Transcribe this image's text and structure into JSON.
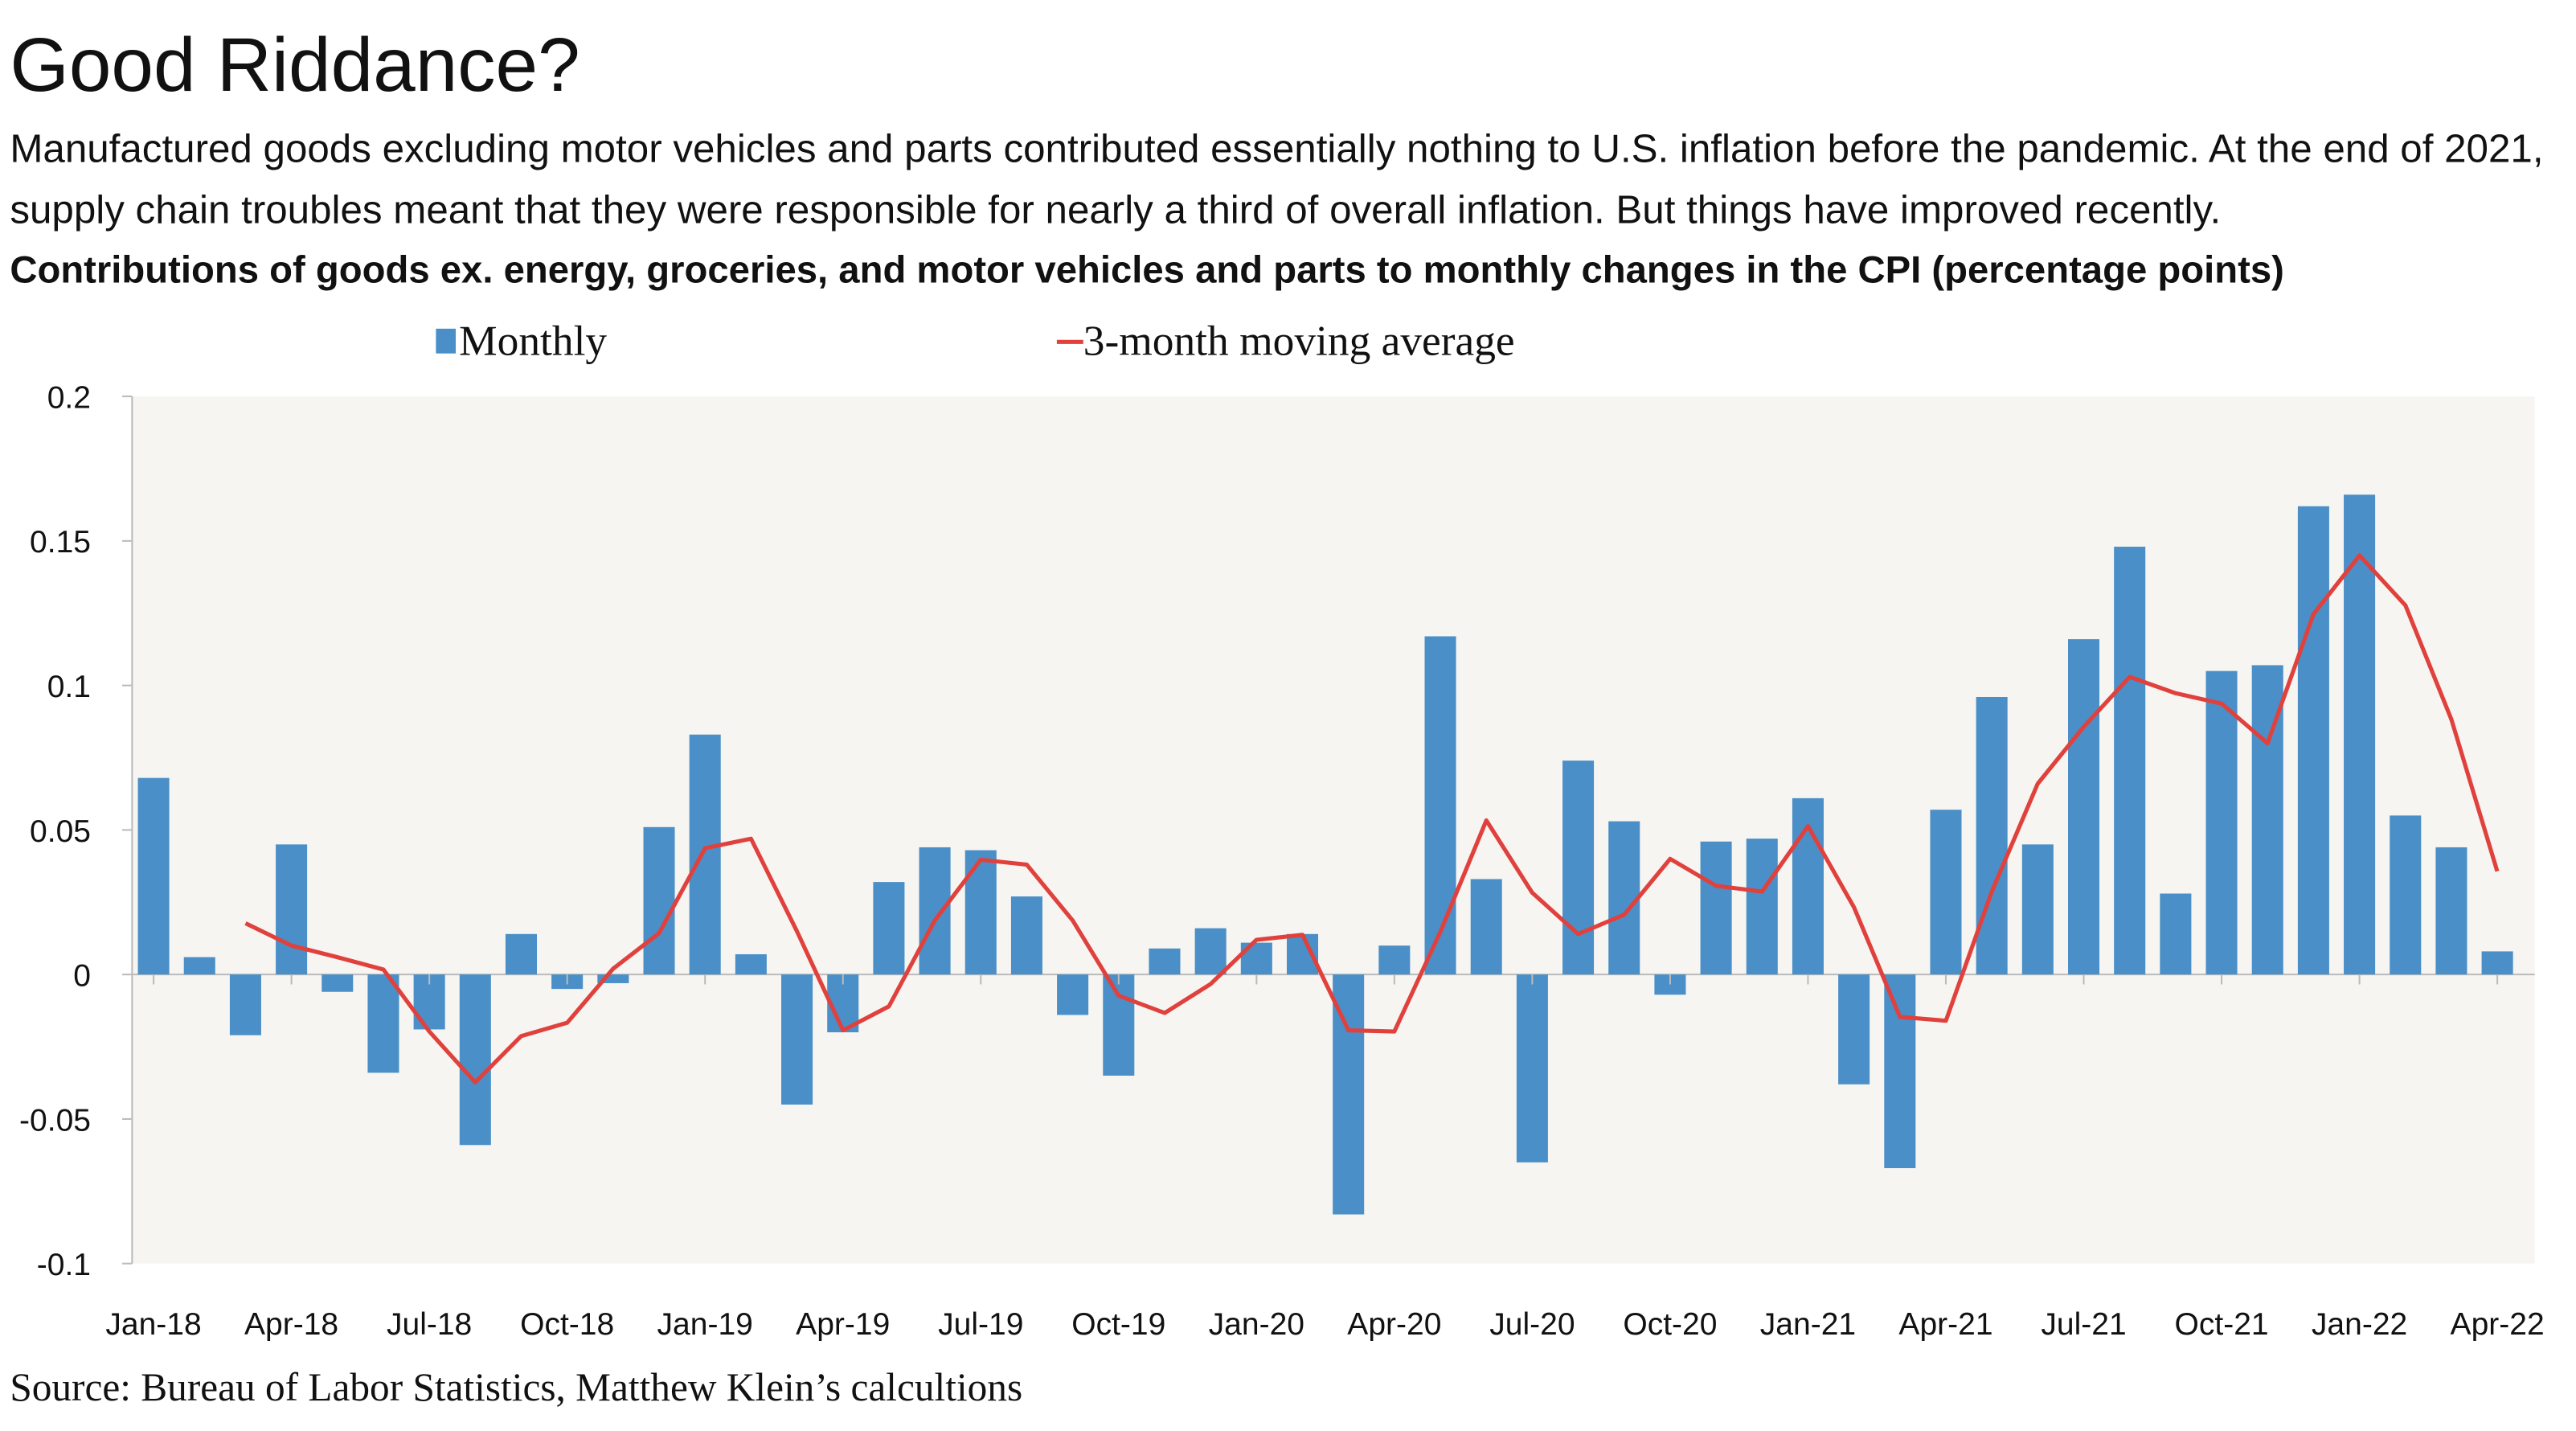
{
  "title": "Good Riddance?",
  "subtitle": "Manufactured goods excluding motor vehicles and parts contributed essentially nothing to U.S. inflation before the pandemic. At the end of 2021, supply chain troubles meant that they were responsible for nearly a third of overall inflation. But things have improved recently.",
  "source": "Source: Bureau of Labor Statistics, Matthew Klein’s calcultions",
  "chart_data": {
    "type": "bar+line",
    "title": "Contributions of goods ex. energy, groceries, and motor vehicles and parts to monthly changes in the CPI (percentage points)",
    "xlabel": "",
    "ylabel": "",
    "ylim": [
      -0.1,
      0.2
    ],
    "yticks": [
      "0.2",
      "0.15",
      "0.1",
      "0.05",
      "0",
      "-0.05",
      "-0.1"
    ],
    "ytick_values": [
      0.2,
      0.15,
      0.1,
      0.05,
      0,
      -0.05,
      -0.1
    ],
    "grid": false,
    "legend_placement": "top",
    "colors": {
      "bar": "#4a8fc7",
      "line": "#e0413d",
      "plot_background": "#f6f5f1"
    },
    "categories": [
      "Jan-18",
      "Feb-18",
      "Mar-18",
      "Apr-18",
      "May-18",
      "Jun-18",
      "Jul-18",
      "Aug-18",
      "Sep-18",
      "Oct-18",
      "Nov-18",
      "Dec-18",
      "Jan-19",
      "Feb-19",
      "Mar-19",
      "Apr-19",
      "May-19",
      "Jun-19",
      "Jul-19",
      "Aug-19",
      "Sep-19",
      "Oct-19",
      "Nov-19",
      "Dec-19",
      "Jan-20",
      "Feb-20",
      "Mar-20",
      "Apr-20",
      "May-20",
      "Jun-20",
      "Jul-20",
      "Aug-20",
      "Sep-20",
      "Oct-20",
      "Nov-20",
      "Dec-20",
      "Jan-21",
      "Feb-21",
      "Mar-21",
      "Apr-21",
      "May-21",
      "Jun-21",
      "Jul-21",
      "Aug-21",
      "Sep-21",
      "Oct-21",
      "Nov-21",
      "Dec-21",
      "Jan-22",
      "Feb-22",
      "Mar-22",
      "Apr-22"
    ],
    "xticks": [
      "Jan-18",
      "Apr-18",
      "Jul-18",
      "Oct-18",
      "Jan-19",
      "Apr-19",
      "Jul-19",
      "Oct-19",
      "Jan-20",
      "Apr-20",
      "Jul-20",
      "Oct-20",
      "Jan-21",
      "Apr-21",
      "Jul-21",
      "Oct-21",
      "Jan-22",
      "Apr-22"
    ],
    "series": [
      {
        "name": "Monthly",
        "type": "bar",
        "values": [
          0.068,
          0.006,
          -0.021,
          0.045,
          -0.006,
          -0.034,
          -0.019,
          -0.059,
          0.014,
          -0.005,
          -0.003,
          0.051,
          0.083,
          0.007,
          -0.045,
          -0.02,
          0.032,
          0.044,
          0.043,
          0.027,
          -0.014,
          -0.035,
          0.009,
          0.016,
          0.011,
          0.014,
          -0.083,
          0.01,
          0.117,
          0.033,
          -0.065,
          0.074,
          0.053,
          -0.007,
          0.046,
          0.047,
          0.061,
          -0.038,
          -0.067,
          0.057,
          0.096,
          0.045,
          0.116,
          0.148,
          0.028,
          0.105,
          0.107,
          0.162,
          0.166,
          0.055,
          0.044,
          0.008
        ]
      },
      {
        "name": "3-month moving average",
        "type": "line",
        "values": [
          null,
          null,
          0.0177,
          0.01,
          0.006,
          0.0017,
          -0.0197,
          -0.0373,
          -0.0213,
          -0.0167,
          0.002,
          0.0143,
          0.0437,
          0.047,
          0.015,
          -0.0193,
          -0.011,
          0.0187,
          0.0397,
          0.038,
          0.0187,
          -0.0073,
          -0.0133,
          -0.0033,
          0.012,
          0.0137,
          -0.0193,
          -0.0197,
          0.0147,
          0.0533,
          0.0283,
          0.014,
          0.0207,
          0.04,
          0.0307,
          0.0287,
          0.0513,
          0.0233,
          -0.0147,
          -0.016,
          0.0287,
          0.066,
          0.0857,
          0.103,
          0.0973,
          0.0937,
          0.08,
          0.1247,
          0.145,
          0.1277,
          0.0883,
          0.0357
        ]
      }
    ]
  }
}
